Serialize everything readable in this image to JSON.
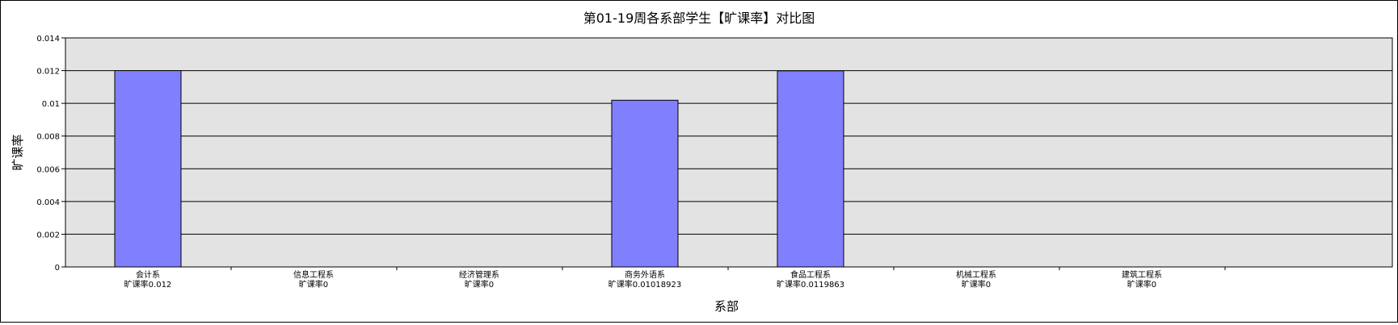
{
  "chart_data": {
    "type": "bar",
    "title": "第01-19周各系部学生【旷课率】对比图",
    "xlabel": "系部",
    "ylabel": "旷课率",
    "categories": [
      "会计系",
      "信息工程系",
      "经济管理系",
      "商务外语系",
      "食品工程系",
      "机械工程系",
      "建筑工程系"
    ],
    "value_labels": [
      "旷课率0.012",
      "旷课率0",
      "旷课率0",
      "旷课率0.01018923",
      "旷课率0.0119863",
      "旷课率0",
      "旷课率0"
    ],
    "values": [
      0.012,
      0,
      0,
      0.01018923,
      0.0119863,
      0,
      0
    ],
    "ylim": [
      0,
      0.014
    ],
    "yticks": [
      "0",
      "0.002",
      "0.004",
      "0.006",
      "0.008",
      "0.01",
      "0.012",
      "0.014"
    ],
    "grid": true,
    "legend": "none",
    "colors": {
      "bar": "#8080ff",
      "plot_background": "#e3e3e3",
      "gridline": "#000000"
    }
  }
}
